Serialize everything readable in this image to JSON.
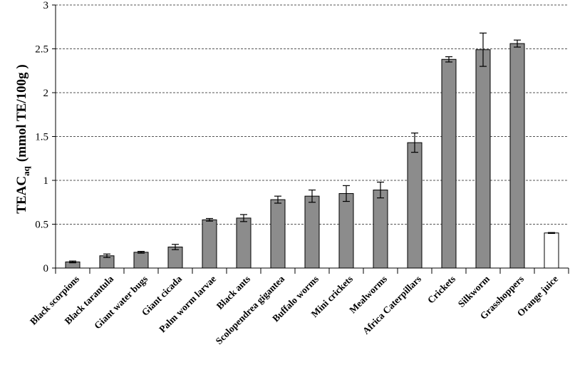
{
  "chart_data": {
    "type": "bar",
    "title": "",
    "xlabel": "",
    "ylabel": {
      "main": "TEAC",
      "subscript": "aq",
      "unit": "(mmol TE/100g )"
    },
    "ylim": [
      0,
      3
    ],
    "yticks": [
      "0",
      "0.5",
      "1",
      "1.5",
      "2",
      "2.5",
      "3"
    ],
    "grid": "horizontal-dashed",
    "categories": [
      "Black scorpions",
      "Black tarantula",
      "Giant water bugs",
      "Giant cicada",
      "Palm worm  larvae",
      "Black ants",
      "Scolopendrea gigantea",
      "Buffalo worms",
      "Mini crickets",
      "Mealworms",
      "Africa Caterpillars",
      "Crickets",
      "Silkworm",
      "Grasshoppers",
      "Orange juice"
    ],
    "values": [
      0.07,
      0.14,
      0.18,
      0.24,
      0.55,
      0.57,
      0.78,
      0.82,
      0.85,
      0.89,
      1.43,
      2.38,
      2.49,
      2.56,
      0.4
    ],
    "errors": [
      0.01,
      0.02,
      0.01,
      0.03,
      0.015,
      0.04,
      0.04,
      0.07,
      0.09,
      0.09,
      0.11,
      0.03,
      0.19,
      0.04,
      0.005
    ],
    "bar_colors": [
      "#8c8c8c",
      "#8c8c8c",
      "#8c8c8c",
      "#8c8c8c",
      "#8c8c8c",
      "#8c8c8c",
      "#8c8c8c",
      "#8c8c8c",
      "#8c8c8c",
      "#8c8c8c",
      "#8c8c8c",
      "#8c8c8c",
      "#8c8c8c",
      "#8c8c8c",
      "#ffffff"
    ]
  }
}
